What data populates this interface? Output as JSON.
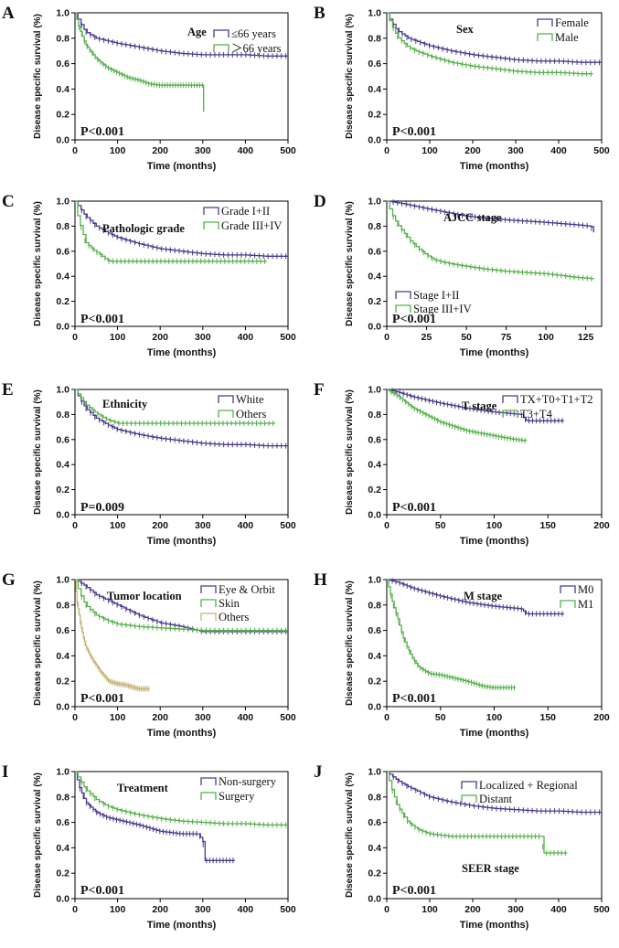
{
  "colors": {
    "purple": "#4b3b8f",
    "green": "#55b04a",
    "tan": "#c7b578",
    "axis": "#000000"
  },
  "chart_data": [
    {
      "type": "line",
      "panel": "A",
      "title": "Age",
      "xlabel": "Time (months)",
      "ylabel": "Disease specific survival (%)",
      "xlim": [
        0,
        500
      ],
      "ylim": [
        0,
        1
      ],
      "xticks": [
        0,
        100,
        200,
        300,
        400,
        500
      ],
      "yticks": [
        "0.0",
        "0.2",
        "0.4",
        "0.6",
        "0.8",
        "1.0"
      ],
      "p_value": "P<0.001",
      "series": [
        {
          "name": "≤66 years",
          "color": "purple",
          "x": [
            0,
            10,
            25,
            50,
            75,
            100,
            150,
            200,
            250,
            300,
            350,
            400,
            450,
            500
          ],
          "y": [
            1.0,
            0.93,
            0.85,
            0.8,
            0.78,
            0.76,
            0.73,
            0.7,
            0.68,
            0.67,
            0.67,
            0.67,
            0.66,
            0.66
          ]
        },
        {
          "name": "＞66 years",
          "color": "green",
          "x": [
            0,
            10,
            25,
            50,
            75,
            100,
            125,
            150,
            175,
            200,
            250,
            300,
            302
          ],
          "y": [
            1.0,
            0.88,
            0.75,
            0.64,
            0.57,
            0.53,
            0.49,
            0.47,
            0.44,
            0.43,
            0.43,
            0.43,
            0.22
          ]
        }
      ]
    },
    {
      "type": "line",
      "panel": "B",
      "title": "Sex",
      "xlabel": "Time (months)",
      "ylabel": "Disease specific survival (%)",
      "xlim": [
        0,
        500
      ],
      "ylim": [
        0,
        1
      ],
      "xticks": [
        0,
        100,
        200,
        300,
        400,
        500
      ],
      "yticks": [
        "0.0",
        "0.2",
        "0.4",
        "0.6",
        "0.8",
        "1.0"
      ],
      "p_value": "P<0.001",
      "series": [
        {
          "name": "Female",
          "color": "purple",
          "x": [
            0,
            10,
            25,
            50,
            75,
            100,
            150,
            200,
            250,
            300,
            350,
            400,
            450,
            500
          ],
          "y": [
            1.0,
            0.93,
            0.86,
            0.8,
            0.77,
            0.74,
            0.7,
            0.67,
            0.65,
            0.63,
            0.62,
            0.62,
            0.61,
            0.61
          ]
        },
        {
          "name": "Male",
          "color": "green",
          "x": [
            0,
            10,
            25,
            50,
            75,
            100,
            150,
            200,
            250,
            300,
            350,
            400,
            450,
            480
          ],
          "y": [
            1.0,
            0.91,
            0.81,
            0.73,
            0.69,
            0.66,
            0.61,
            0.58,
            0.56,
            0.54,
            0.53,
            0.53,
            0.52,
            0.52
          ]
        }
      ]
    },
    {
      "type": "line",
      "panel": "C",
      "title": "Pathologic grade",
      "xlabel": "Time (months)",
      "ylabel": "Disease specific survival (%)",
      "xlim": [
        0,
        500
      ],
      "ylim": [
        0,
        1
      ],
      "xticks": [
        0,
        100,
        200,
        300,
        400,
        500
      ],
      "yticks": [
        "0.0",
        "0.2",
        "0.4",
        "0.6",
        "0.8",
        "1.0"
      ],
      "p_value": "P<0.001",
      "series": [
        {
          "name": "Grade I+II",
          "color": "purple",
          "x": [
            0,
            10,
            25,
            50,
            75,
            100,
            150,
            200,
            250,
            300,
            350,
            400,
            450,
            500
          ],
          "y": [
            1.0,
            0.95,
            0.88,
            0.8,
            0.75,
            0.71,
            0.66,
            0.62,
            0.6,
            0.58,
            0.57,
            0.57,
            0.56,
            0.56
          ]
        },
        {
          "name": "Grade III+IV",
          "color": "green",
          "x": [
            0,
            5,
            15,
            25,
            40,
            60,
            80,
            100,
            150,
            200,
            300,
            400,
            450
          ],
          "y": [
            1.0,
            0.9,
            0.78,
            0.67,
            0.62,
            0.57,
            0.52,
            0.52,
            0.52,
            0.52,
            0.52,
            0.52,
            0.52
          ]
        }
      ]
    },
    {
      "type": "line",
      "panel": "D",
      "title": "AJCC stage",
      "xlabel": "Time (months)",
      "ylabel": "Disease specific survival (%)",
      "xlim": [
        0,
        135
      ],
      "ylim": [
        0,
        1
      ],
      "xticks": [
        0,
        25,
        50,
        75,
        100,
        125
      ],
      "yticks": [
        "0.0",
        "0.2",
        "0.4",
        "0.6",
        "0.8",
        "1.0"
      ],
      "p_value": "P<0.001",
      "series": [
        {
          "name": "Stage I+II",
          "color": "purple",
          "x": [
            0,
            5,
            10,
            25,
            50,
            75,
            100,
            120,
            128,
            130
          ],
          "y": [
            1.0,
            0.99,
            0.98,
            0.94,
            0.88,
            0.85,
            0.83,
            0.81,
            0.8,
            0.75
          ]
        },
        {
          "name": "Stage III+IV",
          "color": "green",
          "x": [
            0,
            3,
            6,
            10,
            15,
            20,
            25,
            30,
            40,
            50,
            60,
            75,
            100,
            120,
            130
          ],
          "y": [
            1.0,
            0.9,
            0.83,
            0.76,
            0.68,
            0.62,
            0.57,
            0.53,
            0.5,
            0.48,
            0.46,
            0.44,
            0.42,
            0.39,
            0.38
          ]
        }
      ]
    },
    {
      "type": "line",
      "panel": "E",
      "title": "Ethnicity",
      "xlabel": "Time (months)",
      "ylabel": "Disease specific survival (%)",
      "xlim": [
        0,
        500
      ],
      "ylim": [
        0,
        1
      ],
      "xticks": [
        0,
        100,
        200,
        300,
        400,
        500
      ],
      "yticks": [
        "0.0",
        "0.2",
        "0.4",
        "0.6",
        "0.8",
        "1.0"
      ],
      "p_value": "P=0.009",
      "series": [
        {
          "name": "White",
          "color": "purple",
          "x": [
            0,
            10,
            25,
            50,
            75,
            100,
            150,
            200,
            250,
            300,
            350,
            400,
            450,
            500
          ],
          "y": [
            1.0,
            0.93,
            0.85,
            0.77,
            0.72,
            0.68,
            0.64,
            0.61,
            0.59,
            0.57,
            0.56,
            0.56,
            0.55,
            0.55
          ]
        },
        {
          "name": "Others",
          "color": "green",
          "x": [
            0,
            10,
            25,
            50,
            75,
            100,
            150,
            200,
            300,
            400,
            470
          ],
          "y": [
            1.0,
            0.95,
            0.88,
            0.81,
            0.76,
            0.73,
            0.73,
            0.73,
            0.73,
            0.73,
            0.73
          ]
        }
      ]
    },
    {
      "type": "line",
      "panel": "F",
      "title": "T stage",
      "xlabel": "Time (months)",
      "ylabel": "Disease specific survival (%)",
      "xlim": [
        0,
        200
      ],
      "ylim": [
        0,
        1
      ],
      "xticks": [
        0,
        50,
        100,
        150,
        200
      ],
      "yticks": [
        "0.0",
        "0.2",
        "0.4",
        "0.6",
        "0.8",
        "1.0"
      ],
      "p_value": "P<0.001",
      "series": [
        {
          "name": "TX+T0+T1+T2",
          "color": "purple",
          "x": [
            0,
            10,
            25,
            50,
            75,
            100,
            125,
            130,
            165
          ],
          "y": [
            1.0,
            0.98,
            0.94,
            0.89,
            0.85,
            0.82,
            0.8,
            0.75,
            0.75
          ]
        },
        {
          "name": "T3+T4",
          "color": "green",
          "x": [
            0,
            10,
            25,
            50,
            75,
            100,
            120,
            130
          ],
          "y": [
            1.0,
            0.95,
            0.85,
            0.74,
            0.67,
            0.63,
            0.6,
            0.59
          ]
        }
      ]
    },
    {
      "type": "line",
      "panel": "G",
      "title": "Tumor location",
      "xlabel": "Time (months)",
      "ylabel": "Disease specific survival (%)",
      "xlim": [
        0,
        500
      ],
      "ylim": [
        0,
        1
      ],
      "xticks": [
        0,
        100,
        200,
        300,
        400,
        500
      ],
      "yticks": [
        "0.0",
        "0.2",
        "0.4",
        "0.6",
        "0.8",
        "1.0"
      ],
      "p_value": "P<0.001",
      "series": [
        {
          "name": "Eye & Orbit",
          "color": "purple",
          "x": [
            0,
            20,
            50,
            100,
            150,
            200,
            250,
            300,
            400,
            500
          ],
          "y": [
            1.0,
            0.96,
            0.88,
            0.8,
            0.72,
            0.66,
            0.63,
            0.59,
            0.59,
            0.59
          ]
        },
        {
          "name": "Skin",
          "color": "green",
          "x": [
            0,
            10,
            25,
            50,
            75,
            100,
            150,
            200,
            250,
            300,
            400,
            500
          ],
          "y": [
            1.0,
            0.9,
            0.8,
            0.72,
            0.68,
            0.65,
            0.63,
            0.62,
            0.61,
            0.6,
            0.6,
            0.6
          ]
        },
        {
          "name": "Others",
          "color": "tan",
          "x": [
            0,
            5,
            15,
            25,
            40,
            60,
            80,
            100,
            120,
            150,
            175
          ],
          "y": [
            1.0,
            0.82,
            0.62,
            0.48,
            0.38,
            0.28,
            0.2,
            0.18,
            0.17,
            0.14,
            0.14
          ]
        }
      ]
    },
    {
      "type": "line",
      "panel": "H",
      "title": "M stage",
      "xlabel": "Time (months)",
      "ylabel": "Disease specific survival (%)",
      "xlim": [
        0,
        200
      ],
      "ylim": [
        0,
        1
      ],
      "xticks": [
        0,
        50,
        100,
        150,
        200
      ],
      "yticks": [
        "0.0",
        "0.2",
        "0.4",
        "0.6",
        "0.8",
        "1.0"
      ],
      "p_value": "P<0.001",
      "series": [
        {
          "name": "M0",
          "color": "purple",
          "x": [
            0,
            10,
            25,
            50,
            75,
            100,
            125,
            130,
            165
          ],
          "y": [
            1.0,
            0.98,
            0.93,
            0.87,
            0.82,
            0.79,
            0.77,
            0.73,
            0.73
          ]
        },
        {
          "name": "M1",
          "color": "green",
          "x": [
            0,
            3,
            6,
            10,
            15,
            20,
            25,
            30,
            40,
            50,
            60,
            75,
            90,
            100,
            120
          ],
          "y": [
            1.0,
            0.9,
            0.8,
            0.7,
            0.55,
            0.45,
            0.37,
            0.31,
            0.26,
            0.25,
            0.23,
            0.2,
            0.16,
            0.15,
            0.15
          ]
        }
      ]
    },
    {
      "type": "line",
      "panel": "I",
      "title": "Treatment",
      "xlabel": "Time (months)",
      "ylabel": "Disease specific survival (%)",
      "xlim": [
        0,
        500
      ],
      "ylim": [
        0,
        1
      ],
      "xticks": [
        0,
        100,
        200,
        300,
        400,
        500
      ],
      "yticks": [
        "0.0",
        "0.2",
        "0.4",
        "0.6",
        "0.8",
        "1.0"
      ],
      "p_value": "P<0.001",
      "series": [
        {
          "name": "Non-surgery",
          "color": "purple",
          "x": [
            0,
            10,
            25,
            50,
            75,
            100,
            150,
            200,
            250,
            290,
            300,
            305,
            375
          ],
          "y": [
            1.0,
            0.88,
            0.76,
            0.68,
            0.64,
            0.62,
            0.58,
            0.53,
            0.51,
            0.51,
            0.45,
            0.3,
            0.3
          ]
        },
        {
          "name": "Surgery",
          "color": "green",
          "x": [
            0,
            10,
            25,
            50,
            75,
            100,
            150,
            200,
            250,
            300,
            350,
            400,
            450,
            500
          ],
          "y": [
            1.0,
            0.94,
            0.86,
            0.78,
            0.73,
            0.7,
            0.66,
            0.63,
            0.61,
            0.6,
            0.59,
            0.59,
            0.58,
            0.58
          ]
        }
      ]
    },
    {
      "type": "line",
      "panel": "J",
      "title": "SEER stage",
      "xlabel": "Time (months)",
      "ylabel": "Disease specific survival (%)",
      "xlim": [
        0,
        500
      ],
      "ylim": [
        0,
        1
      ],
      "xticks": [
        0,
        100,
        200,
        300,
        400,
        500
      ],
      "yticks": [
        "0.0",
        "0.2",
        "0.4",
        "0.6",
        "0.8",
        "1.0"
      ],
      "p_value": "P<0.001",
      "series": [
        {
          "name": "Localized + Regional",
          "color": "purple",
          "x": [
            0,
            10,
            25,
            50,
            75,
            100,
            150,
            200,
            250,
            300,
            350,
            400,
            450,
            500
          ],
          "y": [
            1.0,
            0.97,
            0.93,
            0.88,
            0.84,
            0.8,
            0.76,
            0.73,
            0.71,
            0.7,
            0.69,
            0.69,
            0.68,
            0.68
          ]
        },
        {
          "name": "Distant",
          "color": "green",
          "x": [
            0,
            10,
            25,
            50,
            75,
            100,
            150,
            200,
            300,
            360,
            365,
            420
          ],
          "y": [
            1.0,
            0.88,
            0.73,
            0.6,
            0.54,
            0.51,
            0.49,
            0.49,
            0.49,
            0.49,
            0.36,
            0.36
          ]
        }
      ]
    }
  ]
}
